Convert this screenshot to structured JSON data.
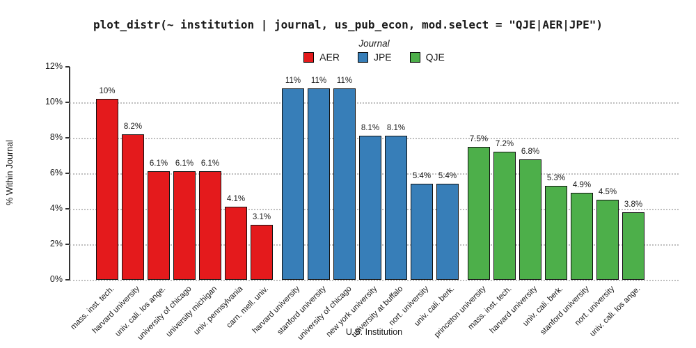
{
  "title": "plot_distr(~ institution | journal, us_pub_econ, mod.select = \"QJE|AER|JPE\")",
  "legend": {
    "title": "Journal",
    "items": [
      {
        "label": "AER",
        "color": "#E41A1C"
      },
      {
        "label": "JPE",
        "color": "#377EB8"
      },
      {
        "label": "QJE",
        "color": "#4DAF4A"
      }
    ]
  },
  "axes": {
    "y_label": "% Within Journal",
    "x_label": "U.S. Institution",
    "y_tick_labels": [
      "0%",
      "2%",
      "4%",
      "6%",
      "8%",
      "10%",
      "12%"
    ],
    "y_tick_values": [
      0,
      2,
      4,
      6,
      8,
      10,
      12
    ],
    "gridline_values": [
      0,
      2,
      4,
      6,
      8,
      10
    ]
  },
  "chart_data": {
    "type": "bar",
    "title": "plot_distr(~ institution | journal, us_pub_econ, mod.select = \"QJE|AER|JPE\")",
    "xlabel": "U.S. Institution",
    "ylabel": "% Within Journal",
    "ylim": [
      0,
      12
    ],
    "grid": "horizontal-dotted",
    "legend_position": "top-center",
    "legend_title": "Journal",
    "series": [
      {
        "name": "AER",
        "color": "#E41A1C",
        "categories": [
          "mass. inst. tech.",
          "harvard university",
          "univ. cali. los ange.",
          "university of chicago",
          "university michigan",
          "univ. pennsylvania",
          "carn. mell. univ."
        ],
        "values": [
          10.2,
          8.2,
          6.1,
          6.1,
          6.1,
          4.1,
          3.1
        ],
        "labels": [
          "10%",
          "8.2%",
          "6.1%",
          "6.1%",
          "6.1%",
          "4.1%",
          "3.1%"
        ]
      },
      {
        "name": "JPE",
        "color": "#377EB8",
        "categories": [
          "harvard university",
          "stanford university",
          "university of chicago",
          "new york university",
          "university at buffalo",
          "nort. university",
          "univ. cali. berk."
        ],
        "values": [
          10.8,
          10.8,
          10.8,
          8.1,
          8.1,
          5.4,
          5.4
        ],
        "labels": [
          "11%",
          "11%",
          "11%",
          "8.1%",
          "8.1%",
          "5.4%",
          "5.4%"
        ]
      },
      {
        "name": "QJE",
        "color": "#4DAF4A",
        "categories": [
          "princeton university",
          "mass. inst. tech.",
          "harvard university",
          "univ. cali. berk.",
          "stanford university",
          "nort. university",
          "univ. cali. los ange."
        ],
        "values": [
          7.5,
          7.2,
          6.8,
          5.3,
          4.9,
          4.5,
          3.8
        ],
        "labels": [
          "7.5%",
          "7.2%",
          "6.8%",
          "5.3%",
          "4.9%",
          "4.5%",
          "3.8%"
        ]
      }
    ]
  }
}
